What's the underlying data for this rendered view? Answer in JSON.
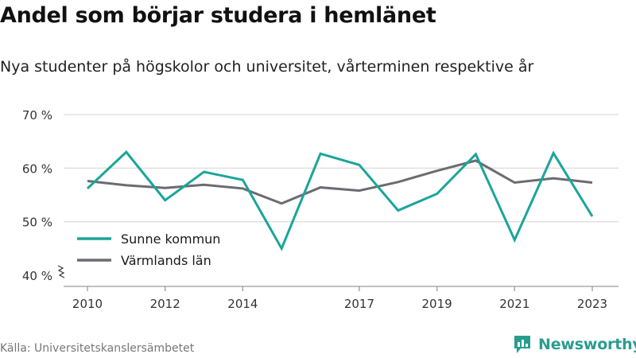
{
  "header": {
    "title": "Andel som börjar studera i hemlänet",
    "subtitle": "Nya studenter på högskolor och universitet, vårterminen respektive år"
  },
  "footer": {
    "source": "Källa: Universitetskanslersämbetet",
    "brand": "Newsworthy"
  },
  "colors": {
    "sunne": "#1aa59a",
    "varmland": "#6b6b72",
    "grid": "#dedede",
    "axis": "#9a9a9a",
    "brand": "#2a9d8f"
  },
  "chart_data": {
    "type": "line",
    "x": [
      2010,
      2011,
      2012,
      2013,
      2014,
      2015,
      2016,
      2017,
      2018,
      2019,
      2020,
      2021,
      2022,
      2023
    ],
    "x_tick_labels": [
      "2010",
      "2012",
      "2014",
      "2017",
      "2019",
      "2021",
      "2023"
    ],
    "x_tick_values": [
      2010,
      2012,
      2014,
      2017,
      2019,
      2021,
      2023
    ],
    "y_ticks": [
      40,
      50,
      60,
      70
    ],
    "y_tick_labels": [
      "40 %",
      "50 %",
      "60 %",
      "70 %"
    ],
    "ylim": [
      40,
      70
    ],
    "grid": true,
    "legend_position": "bottom-left",
    "series": [
      {
        "name": "Sunne kommun",
        "color": "#1aa59a",
        "values": [
          56.2,
          63.0,
          54.0,
          59.3,
          57.8,
          45.0,
          62.7,
          60.6,
          52.1,
          55.2,
          62.6,
          46.6,
          62.8,
          51.0
        ]
      },
      {
        "name": "Värmlands län",
        "color": "#6b6b72",
        "values": [
          57.6,
          56.8,
          56.3,
          56.9,
          56.2,
          53.4,
          56.4,
          55.8,
          57.4,
          59.5,
          61.4,
          57.3,
          58.1,
          57.3
        ]
      }
    ]
  }
}
